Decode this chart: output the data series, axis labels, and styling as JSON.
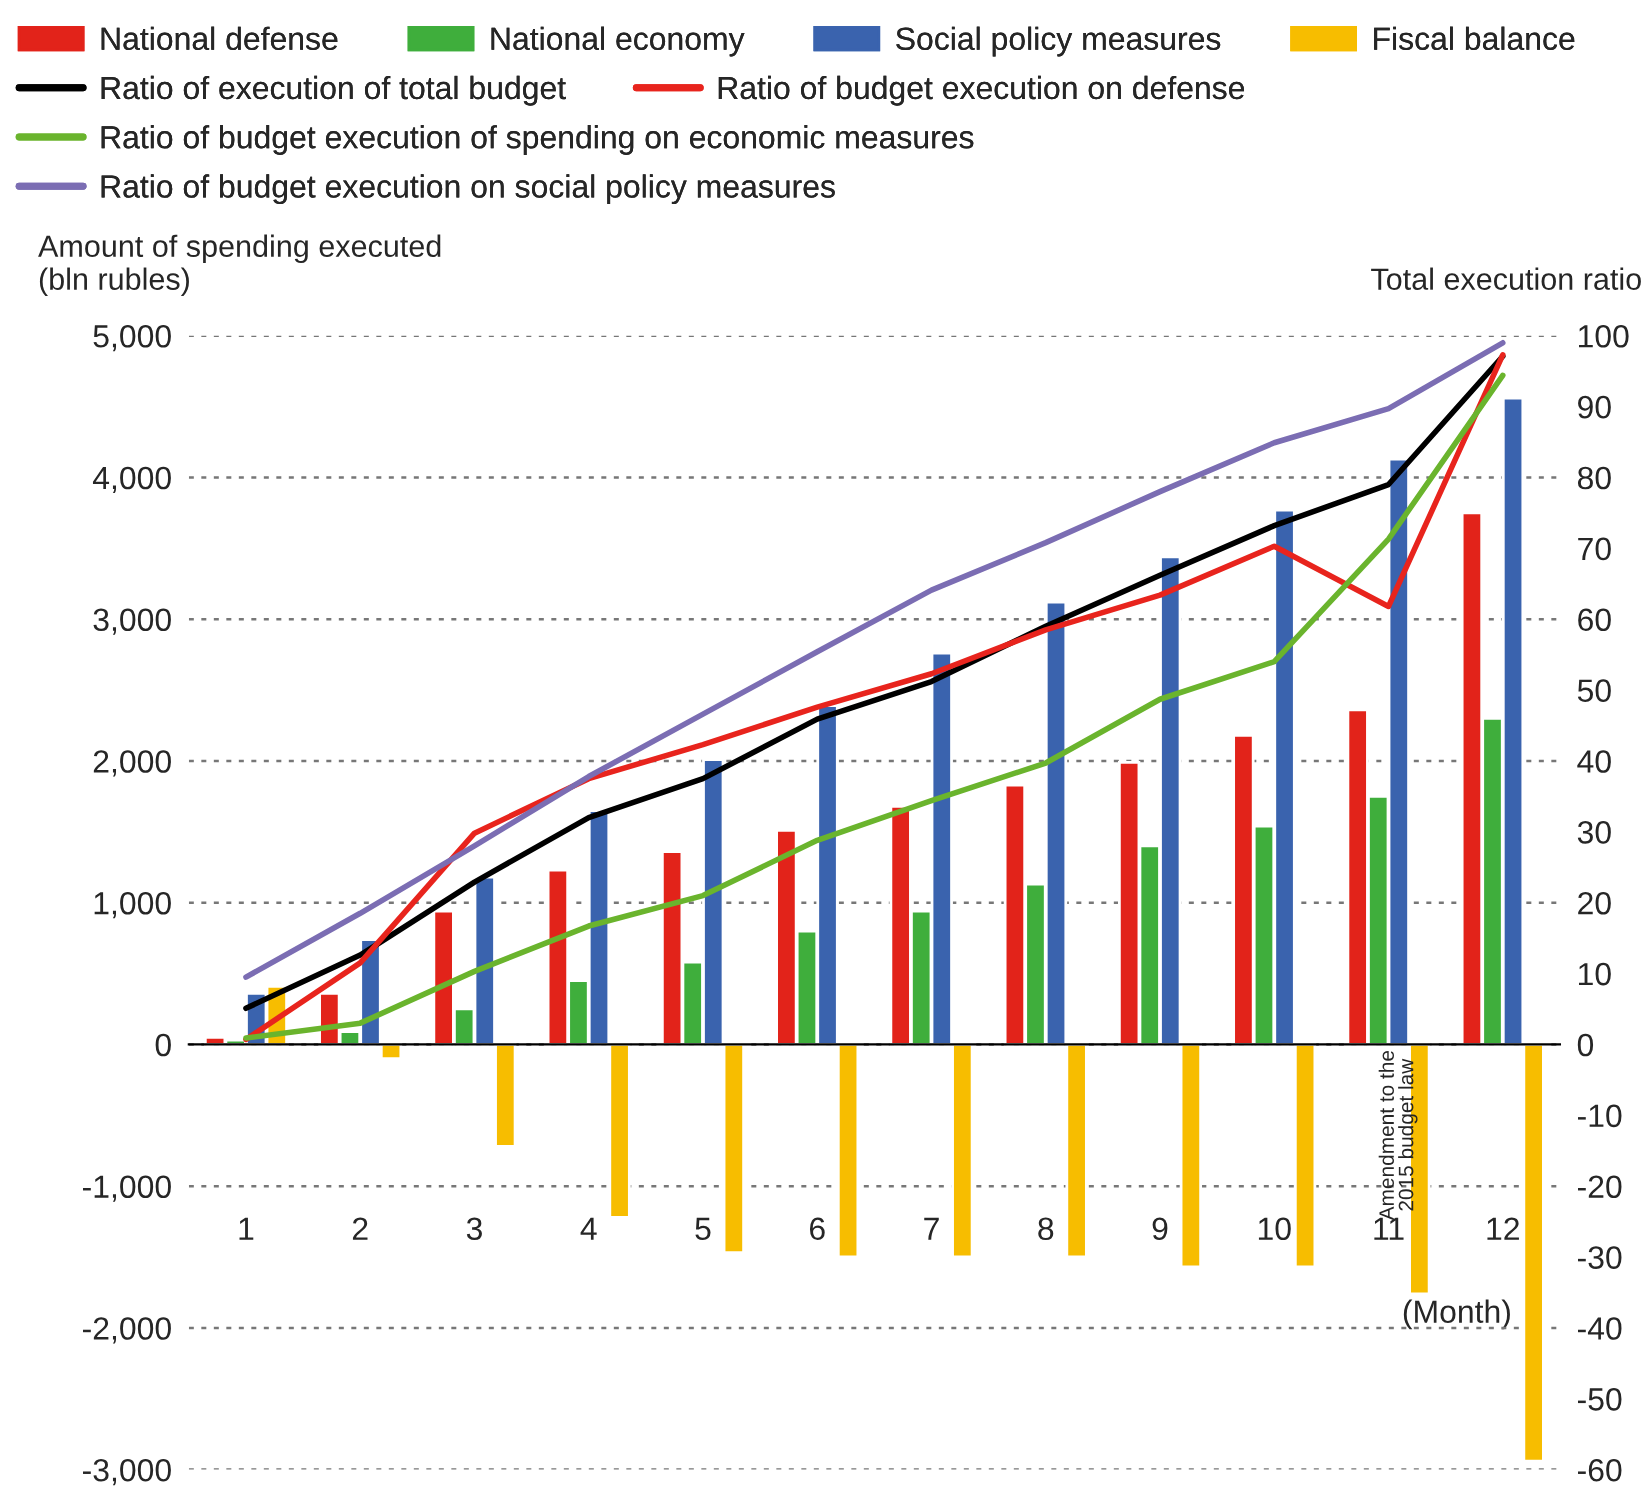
{
  "chart_data": {
    "type": "bar",
    "categories": [
      "1",
      "2",
      "3",
      "4",
      "5",
      "6",
      "7",
      "8",
      "9",
      "10",
      "11",
      "12"
    ],
    "xlabel": "(Month)",
    "ylabel": "Amount of spending executed\n(bln rubles)",
    "y2label": "Total execution ratio",
    "series": [
      {
        "name": "National defense",
        "color": "#e2231a",
        "values": [
          50,
          360,
          940,
          1230,
          1360,
          1510,
          1680,
          1830,
          1990,
          2180,
          2360,
          3750
        ]
      },
      {
        "name": "National economy",
        "color": "#3fae3c",
        "values": [
          30,
          90,
          250,
          450,
          580,
          800,
          940,
          1130,
          1400,
          1540,
          1750,
          2300
        ]
      },
      {
        "name": "Social policy measures",
        "color": "#3a63ae",
        "values": [
          360,
          740,
          1180,
          1650,
          2010,
          2390,
          2760,
          3120,
          3440,
          3770,
          4130,
          4560
        ]
      },
      {
        "name": "Fiscal balance",
        "color": "#f7bd00",
        "values": [
          410,
          -100,
          -720,
          -1220,
          -1470,
          -1500,
          -1500,
          -1500,
          -1570,
          -1570,
          -1760,
          -2940
        ]
      },
      {
        "name": "Ratio of execution of total budget",
        "type": "line",
        "axis": "y2",
        "color": "#000000",
        "values": [
          5.1,
          12.6,
          22.9,
          32,
          37.5,
          45.9,
          51.2,
          59,
          66.2,
          73.2,
          79,
          97.1
        ]
      },
      {
        "name": "Ratio of budget execution on defense",
        "type": "line",
        "axis": "y2",
        "color": "#e8241d",
        "values": [
          0.7,
          11.5,
          29.8,
          37.5,
          42.3,
          47.6,
          52.3,
          58.5,
          63.4,
          70.3,
          61.8,
          97.3
        ]
      },
      {
        "name": "Ratio of budget execution of spending on economic measures",
        "type": "line",
        "axis": "y2",
        "color": "#6ab42d",
        "values": [
          0.9,
          3,
          10.3,
          16.7,
          21,
          28.8,
          34.4,
          39.7,
          48.7,
          54,
          71.3,
          94.4
        ]
      },
      {
        "name": "Ratio of budget execution on social policy measures",
        "type": "line",
        "axis": "y2",
        "color": "#7b6db3",
        "values": [
          9.5,
          18.5,
          28,
          37.8,
          46.6,
          55.4,
          64.1,
          70.8,
          78,
          84.9,
          89.7,
          99
        ]
      }
    ],
    "ylim": [
      -3000,
      5000
    ],
    "yticks": [
      {
        "value": -3000,
        "label": "-3,000"
      },
      {
        "value": -2000,
        "label": "-2,000"
      },
      {
        "value": -1000,
        "label": "-1,000"
      },
      0,
      {
        "value": 1000,
        "label": "1,000"
      },
      {
        "value": 2000,
        "label": "2,000"
      },
      {
        "value": 3000,
        "label": "3,000"
      },
      {
        "value": 4000,
        "label": "4,000"
      },
      {
        "value": 5000,
        "label": "5,000"
      }
    ],
    "y2lim": [
      -60,
      100
    ],
    "y2ticks": [
      -60,
      -50,
      -40,
      -30,
      -20,
      -10,
      0,
      10,
      20,
      30,
      40,
      50,
      60,
      70,
      80,
      90,
      100
    ],
    "annotations": [
      "Amendment to the\n2015 budget law"
    ],
    "grid": "y",
    "legend": "top",
    "marker": "none",
    "line_style": "solid"
  }
}
